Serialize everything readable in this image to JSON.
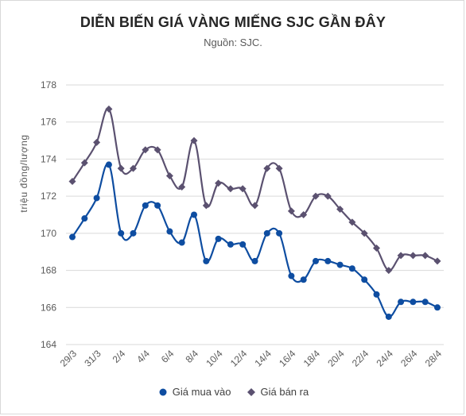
{
  "chart_data": {
    "type": "line",
    "title": "DIỄN BIẾN GIÁ VÀNG MIẾNG SJC GẦN ĐÂY",
    "subtitle": "Nguồn: SJC.",
    "ylabel": "triệu đồng/lượng",
    "xlabel": "",
    "ylim": [
      164,
      178
    ],
    "yticks": [
      "164",
      "166",
      "168",
      "170",
      "172",
      "174",
      "176",
      "178"
    ],
    "x_tick_labels": [
      "29/3",
      "31/3",
      "2/4",
      "4/4",
      "6/4",
      "8/4",
      "10/4",
      "12/4",
      "14/4",
      "16/4",
      "18/4",
      "20/4",
      "22/4",
      "24/4",
      "26/4",
      "28/4"
    ],
    "grid": true,
    "legend_position": "bottom",
    "series": [
      {
        "name": "Giá mua vào",
        "color": "#0e4da1",
        "marker": "circle",
        "values": [
          169.8,
          170.8,
          171.9,
          173.7,
          170.0,
          170.0,
          171.5,
          171.5,
          170.1,
          169.5,
          171.0,
          168.5,
          169.7,
          169.4,
          169.4,
          168.5,
          170.0,
          170.0,
          167.7,
          167.5,
          168.5,
          168.5,
          168.3,
          168.1,
          167.5,
          166.7,
          165.5,
          166.3,
          166.3,
          166.3,
          166.0
        ]
      },
      {
        "name": "Giá bán ra",
        "color": "#5b5170",
        "marker": "diamond",
        "values": [
          172.8,
          173.8,
          174.9,
          176.7,
          173.5,
          173.5,
          174.5,
          174.5,
          173.1,
          172.5,
          175.0,
          171.5,
          172.7,
          172.4,
          172.4,
          171.5,
          173.5,
          173.5,
          171.2,
          171.0,
          172.0,
          172.0,
          171.3,
          170.6,
          170.0,
          169.2,
          168.0,
          168.8,
          168.8,
          168.8,
          168.5
        ]
      }
    ]
  }
}
